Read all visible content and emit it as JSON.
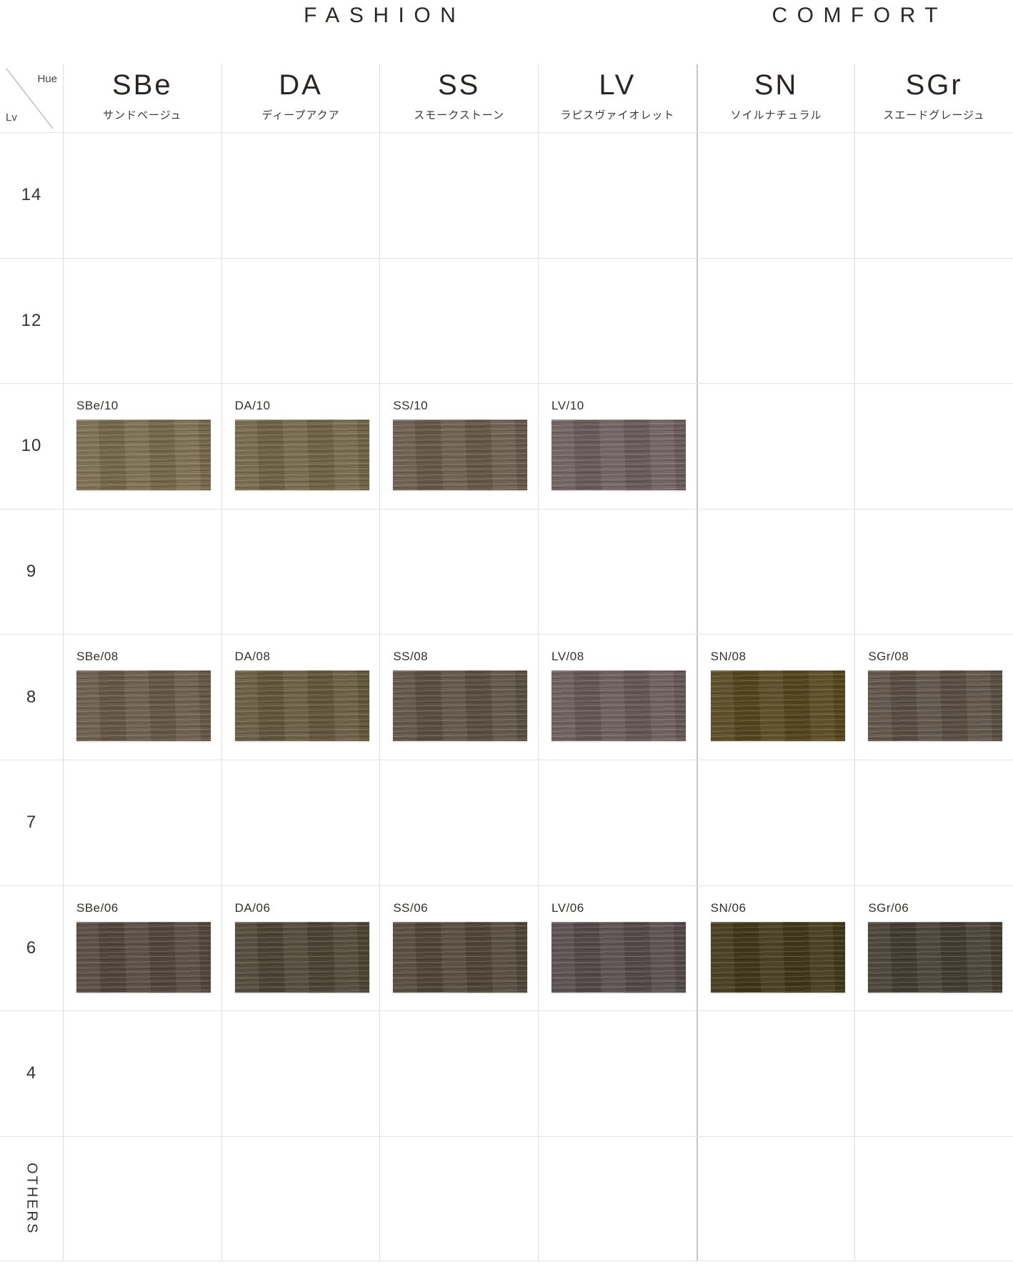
{
  "titles": {
    "fashion": "FASHION",
    "comfort": "COMFORT"
  },
  "corner": {
    "hue": "Hue",
    "lv": "Lv"
  },
  "columns": [
    {
      "code": "SBe",
      "name": "サンドベージュ",
      "group": "fashion"
    },
    {
      "code": "DA",
      "name": "ディープアクア",
      "group": "fashion"
    },
    {
      "code": "SS",
      "name": "スモークストーン",
      "group": "fashion"
    },
    {
      "code": "LV",
      "name": "ラピスヴァイオレット",
      "group": "fashion"
    },
    {
      "code": "SN",
      "name": "ソイルナチュラル",
      "group": "comfort"
    },
    {
      "code": "SGr",
      "name": "スエードグレージュ",
      "group": "comfort"
    }
  ],
  "colors": {
    "grid_line": "#dcdcdc",
    "row_line": "#e3e3e3",
    "group_divider": "#c6c6c6",
    "heading_text": "#2b2422",
    "title_text": "#2e2725"
  },
  "chart_data": {
    "type": "table",
    "title": "Hair color swatch chart (Hue × Lv)",
    "column_codes": [
      "SBe",
      "DA",
      "SS",
      "LV",
      "SN",
      "SGr"
    ],
    "levels": [
      "14",
      "12",
      "10",
      "9",
      "8",
      "7",
      "6",
      "4",
      "OTHERS"
    ],
    "rows": [
      {
        "level": "14",
        "vertical": false,
        "cells": [
          null,
          null,
          null,
          null,
          null,
          null
        ]
      },
      {
        "level": "12",
        "vertical": false,
        "cells": [
          null,
          null,
          null,
          null,
          null,
          null
        ]
      },
      {
        "level": "10",
        "vertical": false,
        "cells": [
          {
            "label": "SBe/10",
            "color": "#7b6e4e"
          },
          {
            "label": "DA/10",
            "color": "#746849"
          },
          {
            "label": "SS/10",
            "color": "#6b5c4d"
          },
          {
            "label": "LV/10",
            "color": "#6f6060"
          },
          null,
          null
        ]
      },
      {
        "level": "9",
        "vertical": false,
        "cells": [
          null,
          null,
          null,
          null,
          null,
          null
        ]
      },
      {
        "level": "8",
        "vertical": false,
        "cells": [
          {
            "label": "SBe/08",
            "color": "#695c49"
          },
          {
            "label": "DA/08",
            "color": "#675c40"
          },
          {
            "label": "SS/08",
            "color": "#5e5345"
          },
          {
            "label": "LV/08",
            "color": "#6a5c5b"
          },
          {
            "label": "SN/08",
            "color": "#574920"
          },
          {
            "label": "SGr/08",
            "color": "#5d5245"
          }
        ]
      },
      {
        "level": "7",
        "vertical": false,
        "cells": [
          null,
          null,
          null,
          null,
          null,
          null
        ]
      },
      {
        "level": "6",
        "vertical": false,
        "cells": [
          {
            "label": "SBe/06",
            "color": "#564a3d"
          },
          {
            "label": "DA/06",
            "color": "#4f4736"
          },
          {
            "label": "SS/06",
            "color": "#53493a"
          },
          {
            "label": "LV/06",
            "color": "#594d4e"
          },
          {
            "label": "SN/06",
            "color": "#433a1b"
          },
          {
            "label": "SGr/06",
            "color": "#474033"
          }
        ]
      },
      {
        "level": "4",
        "vertical": false,
        "cells": [
          null,
          null,
          null,
          null,
          null,
          null
        ]
      },
      {
        "level": "OTHERS",
        "vertical": true,
        "cells": [
          null,
          null,
          null,
          null,
          null,
          null
        ]
      }
    ]
  }
}
